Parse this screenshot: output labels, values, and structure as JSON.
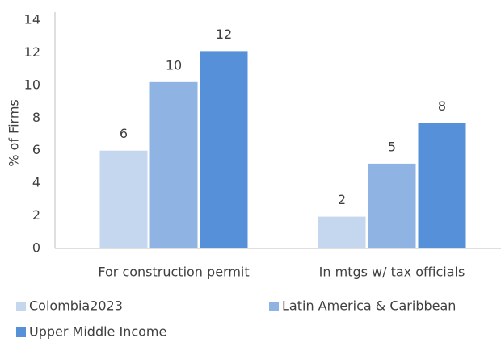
{
  "chart_data": {
    "type": "bar",
    "categories": [
      "For construction permit",
      "In mtgs w/ tax officials"
    ],
    "y_label": "% of Firms",
    "series": [
      {
        "name": "Colombia2023",
        "color": "#c5d6ef",
        "values": [
          6.0,
          1.95
        ],
        "value_labels": [
          "6",
          "2"
        ]
      },
      {
        "name": "Latin America & Caribbean",
        "color": "#8fb3e3",
        "values": [
          10.2,
          5.2
        ],
        "value_labels": [
          "10",
          "5"
        ]
      },
      {
        "name": "Upper Middle Income",
        "color": "#5590d9",
        "values": [
          12.1,
          7.7
        ],
        "value_labels": [
          "12",
          "8"
        ]
      }
    ],
    "ylim": [
      0,
      14
    ],
    "yticks": [
      0,
      2,
      4,
      6,
      8,
      10,
      12,
      14
    ],
    "grid": false
  }
}
